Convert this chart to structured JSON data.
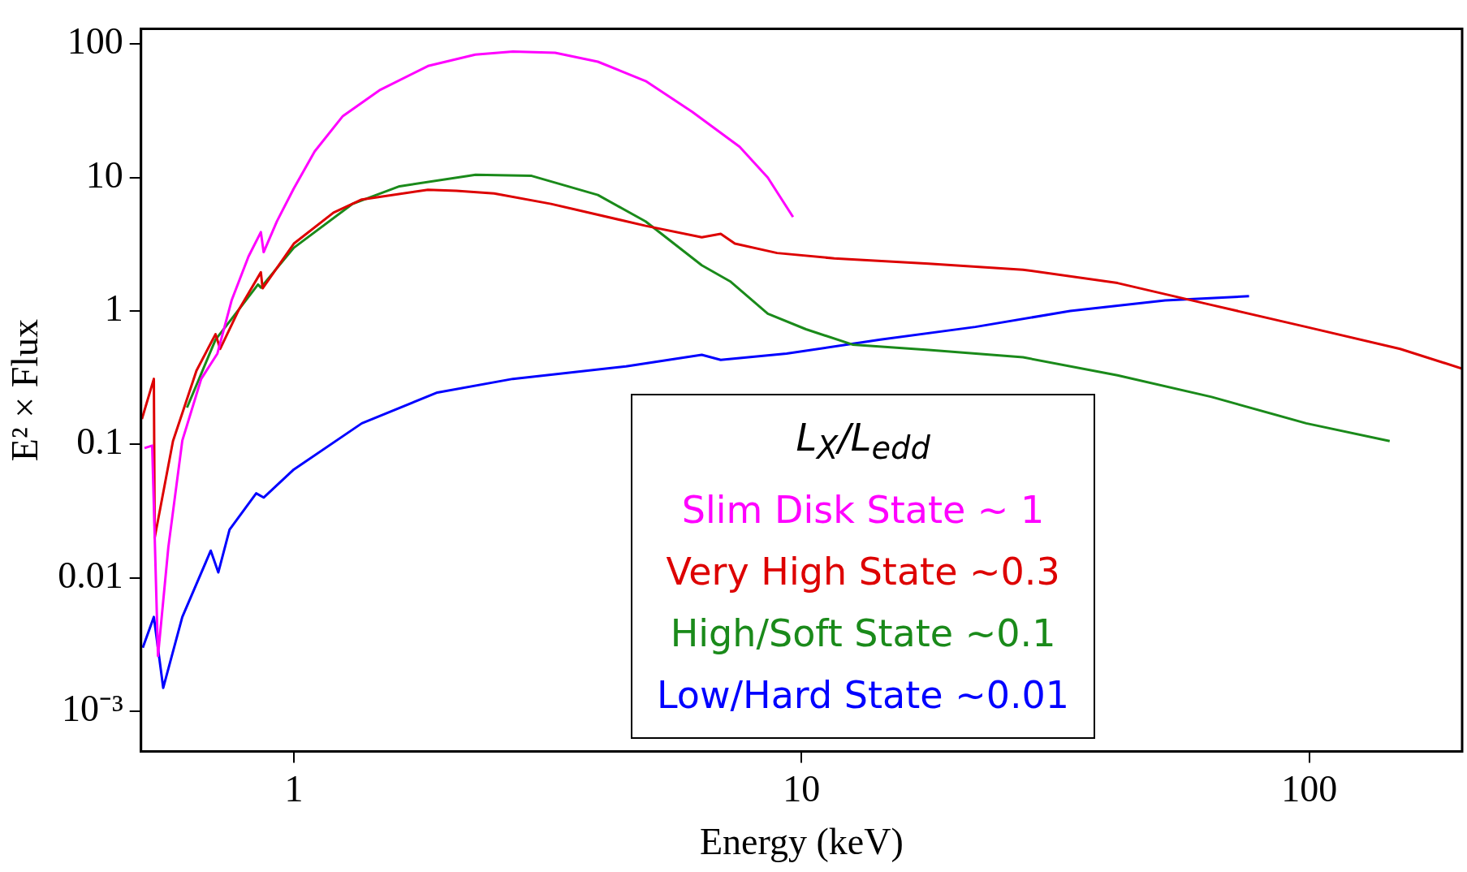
{
  "chart_data": {
    "type": "line",
    "xlabel": "Energy (keV)",
    "ylabel": "E² × Flux",
    "log": "xy",
    "grid": false,
    "legend": "bottom",
    "legend_title": "L$_{X}$/L$_{edd}$",
    "marker": "none",
    "line_style": "solid",
    "xlim": [
      0.5,
      200
    ],
    "xticks": [
      1,
      10,
      100
    ],
    "ylim": [
      0.0005,
      130
    ],
    "yticks": [
      {
        "value": 0.001,
        "label": "10⁻³"
      },
      0.01,
      0.1,
      1,
      10,
      100
    ],
    "series": [
      {
        "name": "Slim Disk State ~ 1",
        "color": "#ff00ff",
        "x": [
          0.508,
          0.526,
          0.54,
          0.566,
          0.603,
          0.657,
          0.707,
          0.754,
          0.814,
          0.861,
          0.872,
          0.926,
          1,
          1.099,
          1.249,
          1.48,
          1.837,
          2.277,
          2.7,
          3.27,
          3.97,
          4.93,
          6.09,
          7.55,
          8.58,
          9.62
        ],
        "values": [
          0.094,
          0.098,
          0.0026,
          0.017,
          0.107,
          0.31,
          0.48,
          1.2,
          2.56,
          3.9,
          2.76,
          4.7,
          8.3,
          15.7,
          28.9,
          45.5,
          68.5,
          83.4,
          88,
          86,
          73.8,
          52.9,
          31.1,
          17,
          10,
          5.06
        ]
      },
      {
        "name": "Very High State ~0.3",
        "color": "#dd0000",
        "x": [
          0.502,
          0.53,
          0.532,
          0.578,
          0.643,
          0.701,
          0.716,
          0.78,
          0.861,
          0.868,
          1,
          1.197,
          1.361,
          1.837,
          2.09,
          2.48,
          3.21,
          4.93,
          6.36,
          6.93,
          7.39,
          8.95,
          11.6,
          17.8,
          27.3,
          41.9,
          64.2,
          98.6,
          151,
          200
        ],
        "values": [
          0.155,
          0.31,
          0.02,
          0.106,
          0.357,
          0.67,
          0.52,
          1.03,
          1.95,
          1.48,
          3.2,
          5.46,
          6.85,
          8.1,
          7.96,
          7.6,
          6.35,
          4.35,
          3.57,
          3.79,
          3.2,
          2.72,
          2.48,
          2.26,
          2.04,
          1.62,
          1.11,
          0.76,
          0.52,
          0.37
        ]
      },
      {
        "name": "High/Soft State ~0.1",
        "color": "#1a8a1a",
        "x": [
          0.616,
          0.701,
          0.78,
          0.85,
          0.861,
          1,
          1.305,
          1.615,
          2.28,
          2.94,
          3.97,
          4.93,
          6.36,
          7.23,
          8.58,
          10.2,
          12.6,
          17.8,
          27.3,
          41.9,
          64.2,
          98.6,
          144
        ],
        "values": [
          0.189,
          0.61,
          1.03,
          1.58,
          1.5,
          2.98,
          6.35,
          8.6,
          10.5,
          10.3,
          7.4,
          4.69,
          2.2,
          1.67,
          0.955,
          0.73,
          0.56,
          0.51,
          0.45,
          0.33,
          0.227,
          0.144,
          0.106
        ]
      },
      {
        "name": "Low/Hard State ~0.01",
        "color": "#0000ff",
        "x": [
          0.504,
          0.53,
          0.553,
          0.603,
          0.686,
          0.71,
          0.747,
          0.843,
          0.872,
          1,
          1.361,
          1.917,
          2.7,
          4.51,
          6.36,
          6.93,
          9.34,
          14.3,
          22.0,
          33.8,
          52.0,
          76.1
        ],
        "values": [
          0.003,
          0.0051,
          0.0015,
          0.0051,
          0.016,
          0.011,
          0.023,
          0.043,
          0.04,
          0.065,
          0.144,
          0.245,
          0.31,
          0.385,
          0.47,
          0.43,
          0.48,
          0.61,
          0.76,
          1.0,
          1.2,
          1.29
        ]
      }
    ]
  }
}
